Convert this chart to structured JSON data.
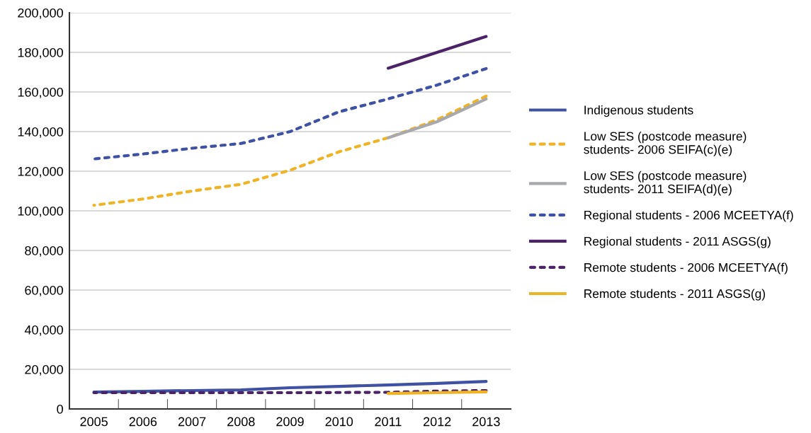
{
  "chart_data": {
    "type": "line",
    "categories": [
      "2005",
      "2006",
      "2007",
      "2008",
      "2009",
      "2010",
      "2011",
      "2012",
      "2013"
    ],
    "ylim": [
      0,
      200000
    ],
    "yticks": [
      {
        "value": 0,
        "label": "0"
      },
      {
        "value": 20000,
        "label": "20,000"
      },
      {
        "value": 40000,
        "label": "40,000"
      },
      {
        "value": 60000,
        "label": "60,000"
      },
      {
        "value": 80000,
        "label": "80,000"
      },
      {
        "value": 100000,
        "label": "100,000"
      },
      {
        "value": 120000,
        "label": "120,000"
      },
      {
        "value": 140000,
        "label": "140,000"
      },
      {
        "value": 160000,
        "label": "160,000"
      },
      {
        "value": 180000,
        "label": "180,000"
      },
      {
        "value": 200000,
        "label": "200,000"
      }
    ],
    "grid": "y",
    "legend": "right",
    "series": [
      {
        "name": "Indigenous students",
        "color": "#3f51a3",
        "line_style": "solid",
        "values": [
          8500,
          8900,
          9300,
          9600,
          10700,
          11400,
          12100,
          12900,
          13900
        ]
      },
      {
        "name": "Low SES (postcode measure)\nstudents- 2006 SEIFA(c)(e)",
        "color": "#f0b323",
        "line_style": "dashed",
        "values": [
          102800,
          106000,
          110000,
          113400,
          120500,
          129800,
          136900,
          146000,
          157900
        ]
      },
      {
        "name": "Low SES (postcode measure)\nstudents- 2011 SEIFA(d)(e)",
        "color": "#a7a9ac",
        "line_style": "solid",
        "values": [
          null,
          null,
          null,
          null,
          null,
          null,
          136900,
          145000,
          156500
        ]
      },
      {
        "name": "Regional students - 2006 MCEETYA(f)",
        "color": "#3f51a3",
        "line_style": "dashed",
        "values": [
          126200,
          128700,
          131600,
          134000,
          140000,
          150000,
          156500,
          163500,
          171800
        ]
      },
      {
        "name": "Regional students - 2011 ASGS(g)",
        "color": "#4b2366",
        "line_style": "solid",
        "values": [
          null,
          null,
          null,
          null,
          null,
          null,
          172000,
          180000,
          188000
        ]
      },
      {
        "name": "Remote students - 2006 MCEETYA(f)",
        "color": "#4b2366",
        "line_style": "dashed",
        "values": [
          8200,
          8200,
          8200,
          8200,
          8200,
          8300,
          8400,
          9000,
          9300
        ]
      },
      {
        "name": "Remote students - 2011 ASGS(g)",
        "color": "#f0b323",
        "line_style": "solid",
        "values": [
          null,
          null,
          null,
          null,
          null,
          null,
          7800,
          8200,
          8600
        ]
      }
    ]
  }
}
